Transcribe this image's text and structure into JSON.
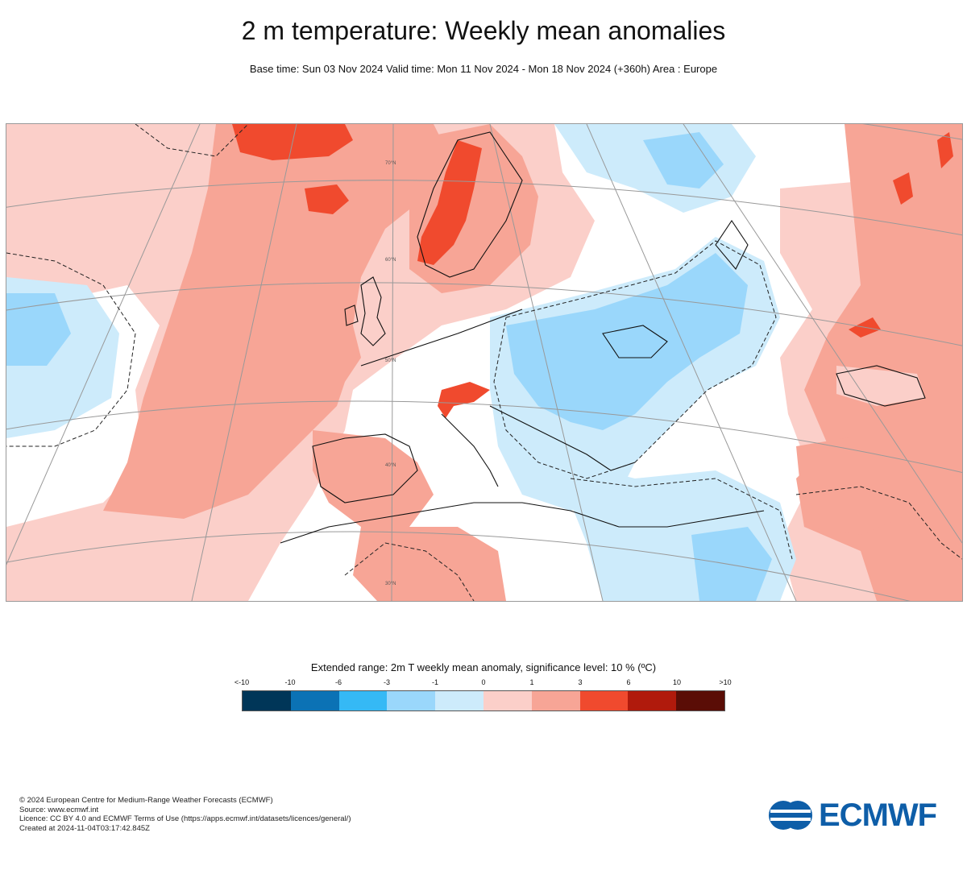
{
  "header": {
    "title": "2 m temperature: Weekly mean anomalies",
    "subtitle": "Base time: Sun 03 Nov 2024 Valid time: Mon 11 Nov 2024 - Mon 18 Nov 2024 (+360h) Area : Europe"
  },
  "map": {
    "region": "Europe",
    "lat_labels": [
      "70°N",
      "60°N",
      "50°N",
      "40°N",
      "30°N"
    ],
    "colors": {
      "lt_m10": "#003658",
      "m10_m6": "#0b72b5",
      "m6_m3": "#35b9f5",
      "m3_m1": "#9ad7fb",
      "m1_0": "#cdebfb",
      "0_1": "#fbcfc9",
      "1_3": "#f7a596",
      "3_6": "#f04a2e",
      "6_10": "#b01a0c",
      "gt_10": "#5a0d06"
    }
  },
  "legend": {
    "title": "Extended range: 2m T weekly mean anomaly, significance level: 10 % (ºC)",
    "ticks": [
      "<-10",
      "-10",
      "-6",
      "-3",
      "-1",
      "0",
      "1",
      "3",
      "6",
      "10",
      ">10"
    ],
    "swatches": [
      "#003658",
      "#0b72b5",
      "#35b9f5",
      "#9ad7fb",
      "#cdebfb",
      "#fbcfc9",
      "#f7a596",
      "#f04a2e",
      "#b01a0c",
      "#5a0d06"
    ]
  },
  "credits": {
    "line1": "© 2024 European Centre for Medium-Range Weather Forecasts (ECMWF)",
    "line2": "Source: www.ecmwf.int",
    "line3": "Licence: CC BY 4.0 and ECMWF Terms of Use (https://apps.ecmwf.int/datasets/licences/general/)",
    "line4": "Created at 2024-11-04T03:17:42.845Z"
  },
  "logo": {
    "text": "ECMWF"
  }
}
